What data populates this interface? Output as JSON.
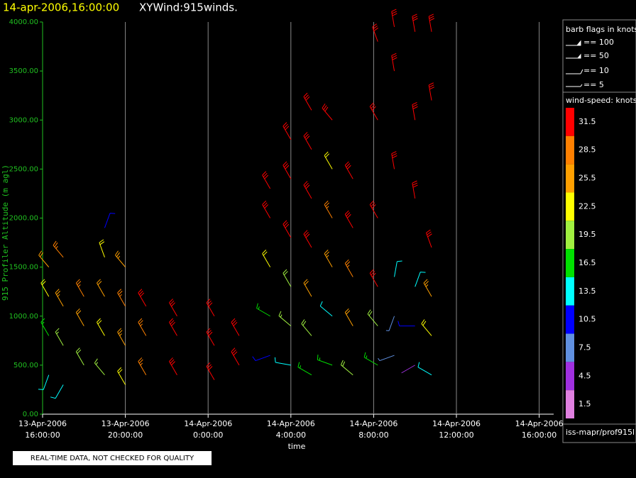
{
  "chart_data": {
    "type": "barb",
    "title": "14-apr-2006,16:00:00",
    "subtitle": "XYWind:915winds.",
    "ylabel": "915 Profiler Altitude (m agl)",
    "xlabel": "time",
    "note": "REAL-TIME DATA, NOT CHECKED FOR QUALITY",
    "source": "iss-mapr/prof915l",
    "xlim": [
      0,
      24.7
    ],
    "ylim": [
      0,
      4000
    ],
    "xticks": [
      {
        "value": 0,
        "label": [
          "13-Apr-2006",
          "16:00:00"
        ]
      },
      {
        "value": 4,
        "label": [
          "13-Apr-2006",
          "20:00:00"
        ]
      },
      {
        "value": 8,
        "label": [
          "14-Apr-2006",
          "0:00:00"
        ]
      },
      {
        "value": 12,
        "label": [
          "14-Apr-2006",
          "4:00:00"
        ]
      },
      {
        "value": 16,
        "label": [
          "14-Apr-2006",
          "8:00:00"
        ]
      },
      {
        "value": 20,
        "label": [
          "14-Apr-2006",
          "12:00:00"
        ]
      },
      {
        "value": 24,
        "label": [
          "14-Apr-2006",
          "16:00:00"
        ]
      }
    ],
    "yticks": [
      {
        "value": 0,
        "label": "0.00"
      },
      {
        "value": 500,
        "label": "500.00"
      },
      {
        "value": 1000,
        "label": "1000.00"
      },
      {
        "value": 1500,
        "label": "1500.00"
      },
      {
        "value": 2000,
        "label": "2000.00"
      },
      {
        "value": 2500,
        "label": "2500.00"
      },
      {
        "value": 3000,
        "label": "3000.00"
      },
      {
        "value": 3500,
        "label": "3500.00"
      },
      {
        "value": 4000,
        "label": "4000.00"
      }
    ],
    "grid": true,
    "flag_legend": {
      "title": "barb flags in knots",
      "entries": [
        "== 100",
        "== 50",
        "== 10",
        "== 5"
      ]
    },
    "colorbar": {
      "title": "wind-speed: knots",
      "levels": [
        31.5,
        28.5,
        25.5,
        22.5,
        19.5,
        16.5,
        13.5,
        10.5,
        7.5,
        4.5,
        1.5
      ],
      "colors": [
        "#ff0000",
        "#ff8000",
        "#ffa000",
        "#ffff00",
        "#a0f040",
        "#00e000",
        "#00ffff",
        "#0000ff",
        "#6090e0",
        "#a030e0",
        "#e080e0"
      ]
    },
    "barbs": [
      [
        0.3,
        400,
        12,
        200
      ],
      [
        0.3,
        800,
        17,
        330
      ],
      [
        0.3,
        1200,
        21,
        330
      ],
      [
        0.3,
        1500,
        24,
        320
      ],
      [
        1.0,
        300,
        14,
        210
      ],
      [
        1.0,
        700,
        18,
        330
      ],
      [
        1.0,
        1100,
        25,
        330
      ],
      [
        1.0,
        1600,
        27,
        320
      ],
      [
        2.0,
        500,
        20,
        330
      ],
      [
        2.0,
        900,
        24,
        330
      ],
      [
        2.0,
        1200,
        27,
        330
      ],
      [
        3.0,
        400,
        18,
        320
      ],
      [
        3.0,
        800,
        22,
        330
      ],
      [
        3.0,
        1200,
        24,
        330
      ],
      [
        3.0,
        1600,
        21,
        340
      ],
      [
        3.0,
        1900,
        10,
        20
      ],
      [
        4.0,
        300,
        22,
        330
      ],
      [
        4.0,
        700,
        26,
        330
      ],
      [
        4.0,
        1100,
        28,
        330
      ],
      [
        4.0,
        1500,
        26,
        320
      ],
      [
        5.0,
        400,
        28,
        330
      ],
      [
        5.0,
        800,
        29,
        330
      ],
      [
        5.0,
        1100,
        30,
        330
      ],
      [
        6.5,
        400,
        32,
        330
      ],
      [
        6.5,
        800,
        33,
        330
      ],
      [
        6.5,
        1000,
        33,
        330
      ],
      [
        8.3,
        350,
        34,
        330
      ],
      [
        8.3,
        700,
        34,
        330
      ],
      [
        8.3,
        1000,
        34,
        330
      ],
      [
        9.5,
        500,
        34,
        330
      ],
      [
        9.5,
        800,
        33,
        330
      ],
      [
        11.0,
        600,
        10,
        250
      ],
      [
        11.0,
        1000,
        15,
        300
      ],
      [
        11.0,
        1500,
        22,
        330
      ],
      [
        11.0,
        2000,
        32,
        330
      ],
      [
        11.0,
        2300,
        33,
        330
      ],
      [
        12.0,
        500,
        14,
        280
      ],
      [
        12.0,
        900,
        18,
        310
      ],
      [
        12.0,
        1300,
        20,
        330
      ],
      [
        12.0,
        1800,
        32,
        330
      ],
      [
        12.0,
        2400,
        34,
        330
      ],
      [
        12.0,
        2800,
        34,
        330
      ],
      [
        13.0,
        400,
        17,
        300
      ],
      [
        13.0,
        800,
        20,
        320
      ],
      [
        13.0,
        1200,
        24,
        330
      ],
      [
        13.0,
        1700,
        30,
        330
      ],
      [
        13.0,
        2200,
        34,
        330
      ],
      [
        13.0,
        2700,
        33,
        330
      ],
      [
        13.0,
        3100,
        34,
        330
      ],
      [
        14.0,
        500,
        15,
        290
      ],
      [
        14.0,
        1000,
        13,
        310
      ],
      [
        14.0,
        1500,
        26,
        330
      ],
      [
        14.0,
        2000,
        29,
        330
      ],
      [
        14.0,
        2500,
        23,
        330
      ],
      [
        14.0,
        3000,
        32,
        320
      ],
      [
        15.0,
        400,
        20,
        310
      ],
      [
        15.0,
        900,
        24,
        330
      ],
      [
        15.0,
        1400,
        28,
        330
      ],
      [
        15.0,
        1900,
        30,
        330
      ],
      [
        15.0,
        2400,
        30,
        330
      ],
      [
        16.2,
        500,
        16,
        300
      ],
      [
        16.2,
        900,
        20,
        320
      ],
      [
        16.2,
        1300,
        30,
        330
      ],
      [
        16.2,
        2000,
        33,
        330
      ],
      [
        16.2,
        3000,
        32,
        330
      ],
      [
        16.2,
        3800,
        34,
        340
      ],
      [
        17.0,
        600,
        8,
        250
      ],
      [
        17.0,
        1000,
        6,
        200
      ],
      [
        17.0,
        1400,
        12,
        10
      ],
      [
        17.0,
        2500,
        34,
        350
      ],
      [
        17.0,
        3500,
        34,
        350
      ],
      [
        17.0,
        3950,
        34,
        350
      ],
      [
        18.0,
        500,
        4,
        240
      ],
      [
        18.0,
        900,
        10,
        270
      ],
      [
        18.0,
        1300,
        12,
        20
      ],
      [
        18.0,
        2200,
        34,
        350
      ],
      [
        18.0,
        3000,
        34,
        350
      ],
      [
        18.0,
        3900,
        34,
        350
      ],
      [
        18.8,
        400,
        14,
        300
      ],
      [
        18.8,
        800,
        22,
        320
      ],
      [
        18.8,
        1200,
        26,
        330
      ],
      [
        18.8,
        1700,
        33,
        340
      ],
      [
        18.8,
        3200,
        34,
        350
      ],
      [
        18.8,
        3900,
        34,
        350
      ]
    ]
  }
}
